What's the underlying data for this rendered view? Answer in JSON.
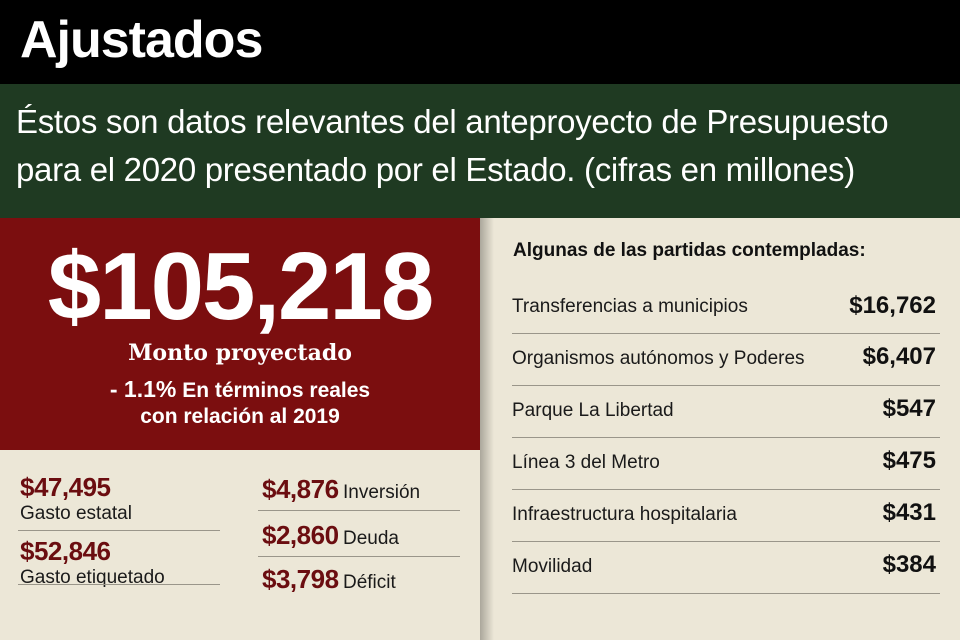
{
  "header": {
    "title": "Ajustados",
    "subtitle_line1": "Éstos son datos relevantes del anteproyecto de Presupuesto",
    "subtitle_line2": "para el 2020 presentado por el Estado. (cifras en millones)"
  },
  "summary": {
    "total": "$105,218",
    "total_label": "Monto proyectado",
    "change_percent": "- 1.1%",
    "change_text": "En términos reales",
    "change_text2": "con relación al 2019"
  },
  "stats": {
    "left": [
      {
        "value": "$47,495",
        "label": "Gasto estatal"
      },
      {
        "value": "$52,846",
        "label": "Gasto etiquetado"
      }
    ],
    "right": [
      {
        "value": "$4,876",
        "label": "Inversión"
      },
      {
        "value": "$2,860",
        "label": "Deuda"
      },
      {
        "value": "$3,798",
        "label": "Déficit"
      }
    ]
  },
  "partidas": {
    "heading": "Algunas de las partidas contempladas:",
    "items": [
      {
        "name": "Transferencias a municipios",
        "value": "$16,762"
      },
      {
        "name": "Organismos autónomos y Poderes",
        "value": "$6,407"
      },
      {
        "name": "Parque La Libertad",
        "value": "$547"
      },
      {
        "name": "Línea 3 del Metro",
        "value": "$475"
      },
      {
        "name": "Infraestructura hospitalaria",
        "value": "$431"
      },
      {
        "name": "Movilidad",
        "value": "$384"
      }
    ]
  },
  "colors": {
    "header_bg": "#000000",
    "subtitle_bg": "#1f3a22",
    "accent_red": "#7b0e0f",
    "stat_value": "#6b0d10",
    "paper": "#ece7d7"
  }
}
